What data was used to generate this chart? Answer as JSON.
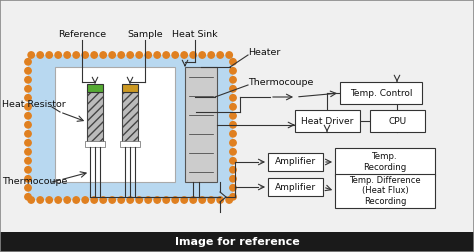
{
  "bg_color": "#f0f0f0",
  "title_bar_color": "#1a1a1a",
  "title_text": "Image for reference",
  "title_text_color": "#ffffff",
  "chamber_bg": "#b8d8f0",
  "chamber_border": "#e08020",
  "ref_cap_color": "#55aa33",
  "samp_cap_color": "#cc9922",
  "box_fc": "#ffffff",
  "box_ec": "#333333",
  "line_color": "#333333",
  "text_color": "#111111",
  "labels": {
    "reference": "Reference",
    "sample": "Sample",
    "heat_sink": "Heat Sink",
    "heater": "Heater",
    "thermocoupe": "Thermocoupe",
    "heat_resistor": "Heat Resistor",
    "thermocoupe2": "Thermocoupe",
    "heat_driver": "Heat Driver",
    "cpu": "CPU",
    "temp_control": "Temp. Control",
    "amplifier1": "Amplifier",
    "amplifier2": "Amplifier",
    "temp_recording": "Temp.\nRecording",
    "temp_diff": "Temp. Difference\n(Heat Flux)\nRecording"
  },
  "figsize": [
    4.74,
    2.52
  ],
  "dpi": 100
}
